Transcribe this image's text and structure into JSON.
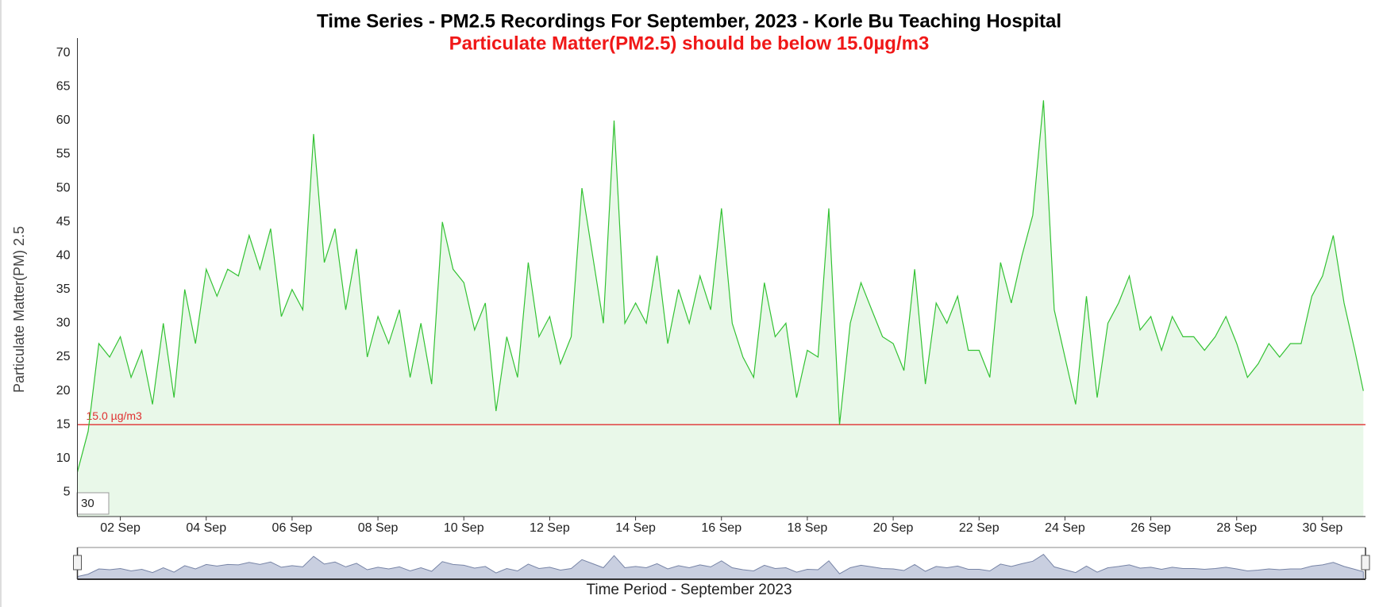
{
  "chart_data": {
    "type": "line",
    "title": "Time Series - PM2.5 Recordings For September, 2023 - Korle Bu Teaching Hospital",
    "subtitle": "Particulate Matter(PM2.5) should be below 15.0µg/m3",
    "y_label": "Particulate Matter(PM) 2.5",
    "x_label": "Time Period - September 2023",
    "range_input": "30",
    "color": "#33c233",
    "fill": "#e9f8e9",
    "threshold": {
      "value": 15,
      "label": "15.0 µg/m3",
      "color": "#e03030"
    },
    "x": [
      1,
      1.25,
      1.5,
      1.75,
      2,
      2.25,
      2.5,
      2.75,
      3,
      3.25,
      3.5,
      3.75,
      4,
      4.25,
      4.5,
      4.75,
      5,
      5.25,
      5.5,
      5.75,
      6,
      6.25,
      6.5,
      6.75,
      7,
      7.25,
      7.5,
      7.75,
      8,
      8.25,
      8.5,
      8.75,
      9,
      9.25,
      9.5,
      9.75,
      10,
      10.25,
      10.5,
      10.75,
      11,
      11.25,
      11.5,
      11.75,
      12,
      12.25,
      12.5,
      12.75,
      13,
      13.25,
      13.5,
      13.75,
      14,
      14.25,
      14.5,
      14.75,
      15,
      15.25,
      15.5,
      15.75,
      16,
      16.25,
      16.5,
      16.75,
      17,
      17.25,
      17.5,
      17.75,
      18,
      18.25,
      18.5,
      18.75,
      19,
      19.25,
      19.5,
      19.75,
      20,
      20.25,
      20.5,
      20.75,
      21,
      21.25,
      21.5,
      21.75,
      22,
      22.25,
      22.5,
      22.75,
      23,
      23.25,
      23.5,
      23.75,
      24,
      24.25,
      24.5,
      24.75,
      25,
      25.25,
      25.5,
      25.75,
      26,
      26.25,
      26.5,
      26.75,
      27,
      27.25,
      27.5,
      27.75,
      28,
      28.25,
      28.5,
      28.75,
      29,
      29.25,
      29.5,
      29.75,
      30,
      30.25,
      30.5,
      30.75,
      30.95
    ],
    "values": [
      8,
      14,
      27,
      25,
      28,
      22,
      26,
      18,
      30,
      19,
      35,
      27,
      38,
      34,
      38,
      37,
      43,
      38,
      44,
      31,
      35,
      32,
      58,
      39,
      44,
      32,
      41,
      25,
      31,
      27,
      32,
      22,
      30,
      21,
      45,
      38,
      36,
      29,
      33,
      17,
      28,
      22,
      39,
      28,
      31,
      24,
      28,
      50,
      40,
      30,
      60,
      30,
      33,
      30,
      40,
      27,
      35,
      30,
      37,
      32,
      47,
      30,
      25,
      22,
      36,
      28,
      30,
      19,
      26,
      25,
      47,
      15,
      30,
      36,
      32,
      28,
      27,
      23,
      38,
      21,
      33,
      30,
      34,
      26,
      26,
      22,
      39,
      33,
      40,
      46,
      63,
      32,
      25,
      18,
      34,
      19,
      30,
      33,
      37,
      29,
      31,
      26,
      31,
      28,
      28,
      26,
      28,
      31,
      27,
      22,
      24,
      27,
      25,
      27,
      27,
      34,
      37,
      43,
      33,
      26,
      20
    ],
    "xlim": [
      1,
      31
    ],
    "ylim": [
      1.4,
      72.2
    ],
    "xticks": [
      {
        "value": 2,
        "label": "02 Sep"
      },
      {
        "value": 4,
        "label": "04 Sep"
      },
      {
        "value": 6,
        "label": "06 Sep"
      },
      {
        "value": 8,
        "label": "08 Sep"
      },
      {
        "value": 10,
        "label": "10 Sep"
      },
      {
        "value": 12,
        "label": "12 Sep"
      },
      {
        "value": 14,
        "label": "14 Sep"
      },
      {
        "value": 16,
        "label": "16 Sep"
      },
      {
        "value": 18,
        "label": "18 Sep"
      },
      {
        "value": 20,
        "label": "20 Sep"
      },
      {
        "value": 22,
        "label": "22 Sep"
      },
      {
        "value": 24,
        "label": "24 Sep"
      },
      {
        "value": 26,
        "label": "26 Sep"
      },
      {
        "value": 28,
        "label": "28 Sep"
      },
      {
        "value": 30,
        "label": "30 Sep"
      }
    ],
    "yticks": [
      5,
      10,
      15,
      20,
      25,
      30,
      35,
      40,
      45,
      50,
      55,
      60,
      65,
      70
    ]
  }
}
